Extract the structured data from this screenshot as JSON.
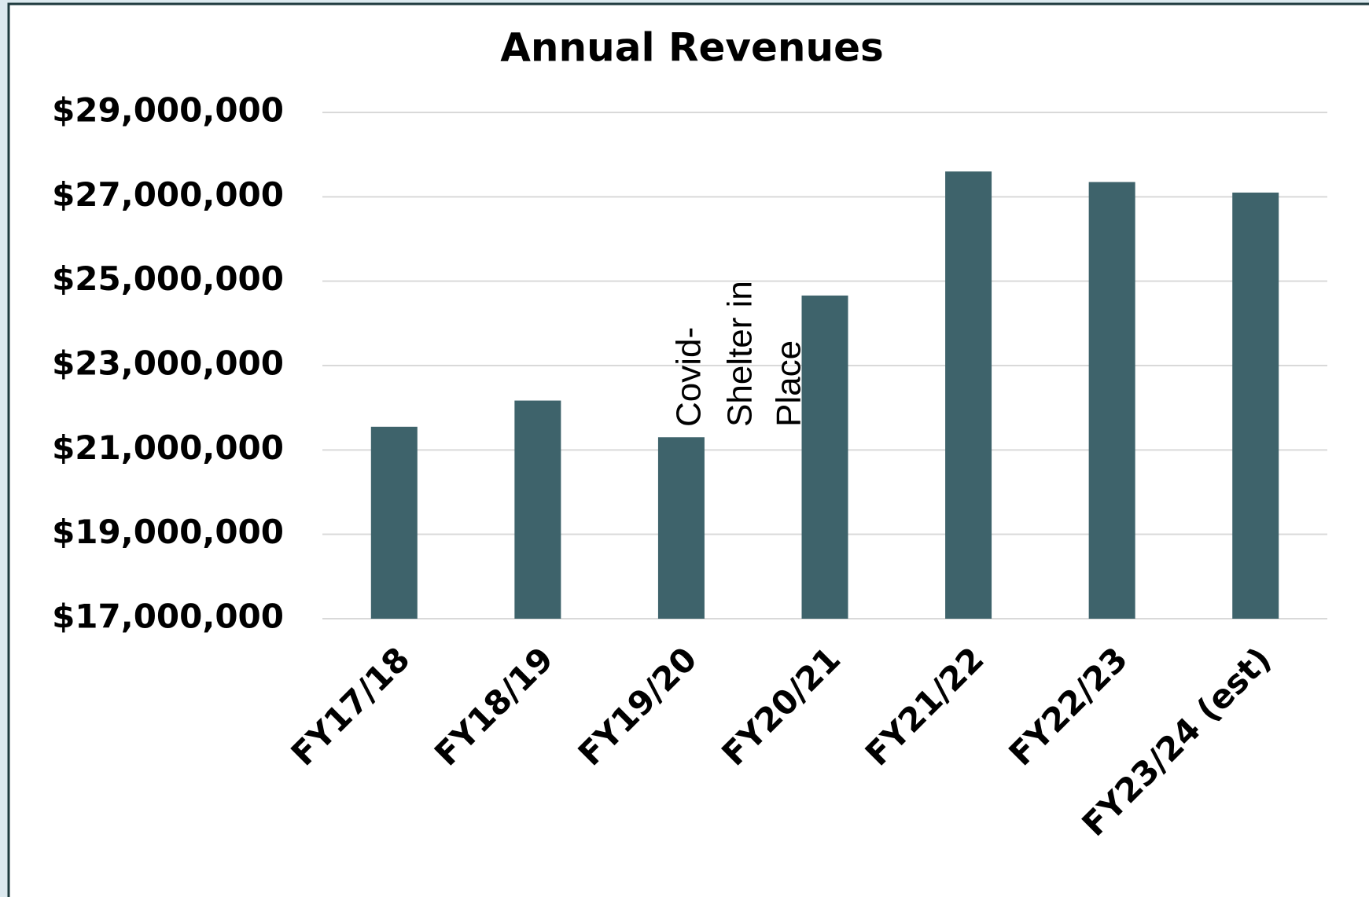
{
  "chart_data": {
    "type": "bar",
    "title": "Annual Revenues",
    "categories": [
      "FY17/18",
      "FY18/19",
      "FY19/20",
      "FY20/21",
      "FY21/22",
      "FY22/23",
      "FY23/24 (est)"
    ],
    "values": [
      21550000,
      22170000,
      21300000,
      24660000,
      27600000,
      27350000,
      27100000
    ],
    "color": "#3e636b",
    "ylim": [
      17000000,
      29000000
    ],
    "yticks": [
      {
        "value": 17000000,
        "label": "$17,000,000"
      },
      {
        "value": 19000000,
        "label": "$19,000,000"
      },
      {
        "value": 21000000,
        "label": "$21,000,000"
      },
      {
        "value": 23000000,
        "label": "$23,000,000"
      },
      {
        "value": 25000000,
        "label": "$25,000,000"
      },
      {
        "value": 27000000,
        "label": "$27,000,000"
      },
      {
        "value": 29000000,
        "label": "$29,000,000"
      }
    ],
    "grid": true,
    "annotation": [
      "Covid-",
      "Shelter in",
      "Place"
    ]
  }
}
